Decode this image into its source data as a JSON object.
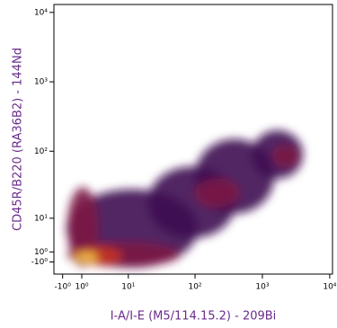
{
  "chart_data": {
    "type": "density",
    "xlabel": "I-A/I-E (M5/114.15.2) - 209Bi",
    "ylabel": "CD45R/B220 (RA36B2) - 144Nd",
    "scale": "arcsinh",
    "x_cofactor": 3,
    "y_cofactor": 6,
    "xlim": [
      -2,
      11000
    ],
    "ylim": [
      -3.6,
      13000
    ],
    "xticks": [
      {
        "value": -1,
        "label": "-10⁰"
      },
      {
        "value": 1,
        "label": "10⁰"
      },
      {
        "value": 10,
        "label": "10¹"
      },
      {
        "value": 100,
        "label": "10²"
      },
      {
        "value": 1000,
        "label": "10³"
      },
      {
        "value": 10000,
        "label": "10⁴"
      }
    ],
    "yticks": [
      {
        "value": -1,
        "label": "-10⁰"
      },
      {
        "value": 1,
        "label": "10⁰"
      },
      {
        "value": 10,
        "label": "10¹"
      },
      {
        "value": 100,
        "label": "10²"
      },
      {
        "value": 1000,
        "label": "10³"
      },
      {
        "value": 10000,
        "label": "10⁴"
      }
    ],
    "palette": [
      "#3d1152",
      "#7c1b45",
      "#c8361c",
      "#f5c64a"
    ],
    "label_color": "#6a2c8c",
    "regions": [
      {
        "x0": -0.6,
        "x1": 110,
        "y0": -2.2,
        "y1": 28,
        "level": 0
      },
      {
        "x0": 20,
        "x1": 400,
        "y0": 4,
        "y1": 60,
        "level": 0
      },
      {
        "x0": 100,
        "x1": 1500,
        "y0": 12,
        "y1": 150,
        "level": 0
      },
      {
        "x0": 700,
        "x1": 4000,
        "y0": 40,
        "y1": 200,
        "level": 0
      },
      {
        "x0": -0.5,
        "x1": 3,
        "y0": -2,
        "y1": 30,
        "level": 1
      },
      {
        "x0": -0.5,
        "x1": 60,
        "y0": -2,
        "y1": 3,
        "level": 1
      },
      {
        "x0": 100,
        "x1": 450,
        "y0": 15,
        "y1": 40,
        "level": 1
      },
      {
        "x0": 1400,
        "x1": 3500,
        "y0": 60,
        "y1": 120,
        "level": 1
      },
      {
        "x0": 0,
        "x1": 8,
        "y0": -1.5,
        "y1": 2,
        "level": 2
      },
      {
        "x0": 0.3,
        "x1": 3,
        "y0": -1,
        "y1": 1,
        "level": 3
      }
    ]
  }
}
